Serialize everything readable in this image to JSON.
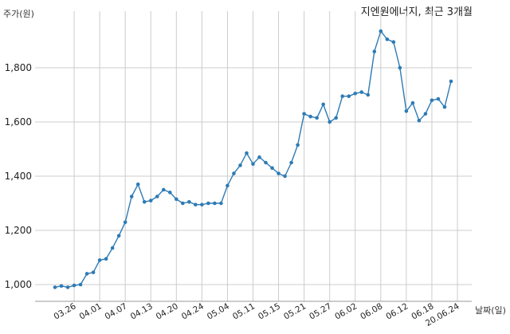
{
  "chart_data": {
    "type": "line",
    "title": "지엔원에너지, 최근 3개월",
    "ylabel": "주가(원)",
    "xlabel": "날짜(일)",
    "ylim": [
      950,
      1980
    ],
    "y_ticks": [
      1000,
      1200,
      1400,
      1600,
      1800
    ],
    "y_tick_labels": [
      "1,000",
      "1,200",
      "1,400",
      "1,600",
      "1,800"
    ],
    "x_tick_labels": [
      "03.26",
      "04.01",
      "04.07",
      "04.13",
      "04.20",
      "04.24",
      "05.04",
      "05.11",
      "05.15",
      "05.21",
      "05.27",
      "06.02",
      "06.08",
      "06.12",
      "06.18",
      "20.06.24"
    ],
    "x_tick_index": [
      3,
      7,
      11,
      15,
      19,
      23,
      27,
      31,
      35,
      39,
      43,
      47,
      51,
      55,
      59,
      63
    ],
    "grid": true,
    "colors": {
      "line": "#2e7bb4",
      "grid": "#cccccc",
      "axis": "#999999"
    },
    "series": [
      {
        "values": [
          990,
          995,
          990,
          997,
          1000,
          1040,
          1045,
          1090,
          1095,
          1135,
          1180,
          1230,
          1325,
          1370,
          1305,
          1310,
          1325,
          1350,
          1340,
          1315,
          1300,
          1305,
          1295,
          1295,
          1300,
          1300,
          1300,
          1365,
          1410,
          1440,
          1485,
          1445,
          1470,
          1450,
          1430,
          1410,
          1400,
          1450,
          1515,
          1630,
          1620,
          1615,
          1665,
          1600,
          1615,
          1695,
          1695,
          1705,
          1710,
          1700,
          1860,
          1935,
          1905,
          1895,
          1800,
          1640,
          1670,
          1605,
          1630,
          1680,
          1685,
          1655,
          1750
        ]
      }
    ]
  }
}
